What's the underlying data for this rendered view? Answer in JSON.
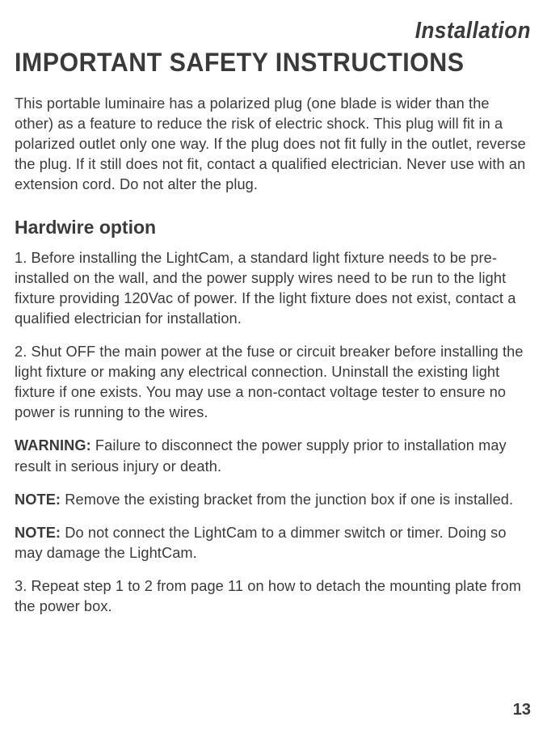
{
  "header": {
    "section_label": "Installation"
  },
  "title": "IMPORTANT SAFETY INSTRUCTIONS",
  "intro_paragraph": "This portable luminaire has a polarized plug (one blade is wider than the other) as a feature to reduce the risk of electric shock. This plug will fit in a polarized outlet only one way. If the plug does not fit fully in the outlet, reverse the plug. If it still does not fit, contact a qualified electrician. Never use with an extension cord. Do not alter the plug.",
  "subsection": {
    "heading": "Hardwire option",
    "step1": "1. Before installing the LightCam, a standard light fixture needs to be pre-installed on the wall, and the power supply wires need to be run to the light fixture providing 120Vac of power. If the light fixture does not exist, contact a qualified electrician for installation.",
    "step2": "2. Shut OFF the main power at the fuse or circuit breaker before installing the light fixture or making any electrical connection. Uninstall the existing light fixture if one exists. You may use a non-contact voltage tester to ensure no power is running to the wires.",
    "warning_label": "WARNING:",
    "warning_text": " Failure to disconnect the power supply prior to installation may result in serious injury or death.",
    "note1_label": "NOTE:",
    "note1_text": " Remove the existing bracket from the junction box if one is installed.",
    "note2_label": "NOTE:",
    "note2_text": " Do not connect the LightCam to a dimmer switch or timer. Doing so may damage the LightCam.",
    "step3": "3. Repeat step 1 to 2 from page 11 on how to detach the mounting plate from the power box."
  },
  "page_number": "13",
  "colors": {
    "text": "#3a3a3a",
    "background": "#ffffff"
  },
  "typography": {
    "section_label_fontsize": 26,
    "title_fontsize": 32,
    "body_fontsize": 18,
    "subheading_fontsize": 23,
    "page_number_fontsize": 20
  }
}
